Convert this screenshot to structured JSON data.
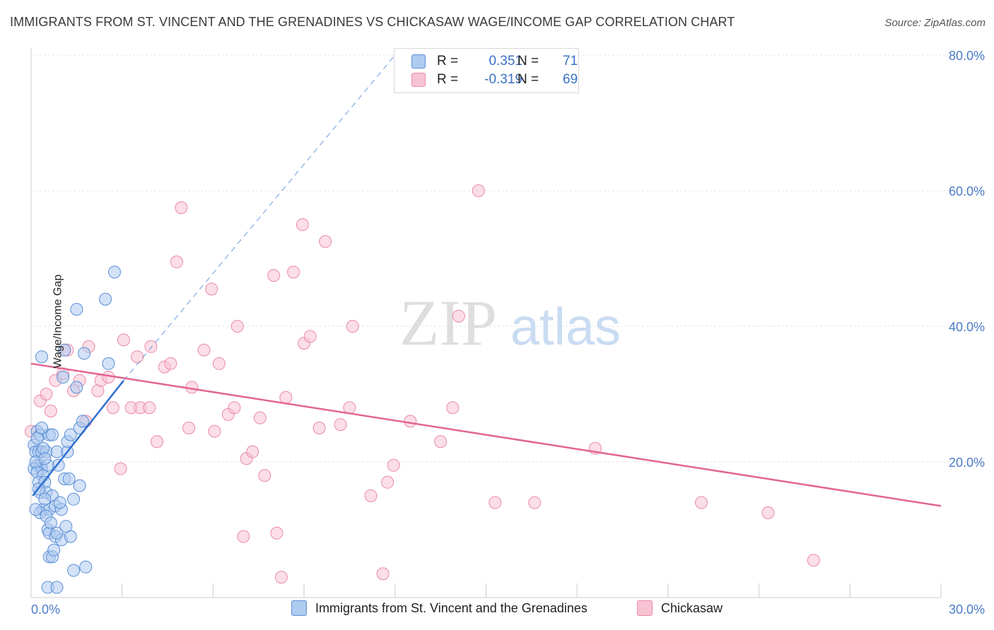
{
  "title": "IMMIGRANTS FROM ST. VINCENT AND THE GRENADINES VS CHICKASAW WAGE/INCOME GAP CORRELATION CHART",
  "source": "Source: ZipAtlas.com",
  "watermark": {
    "zip": "ZIP",
    "atlas": "atlas"
  },
  "legend_top": [
    {
      "r_label": "R =",
      "r_value": "0.351",
      "n_label": "N =",
      "n_value": "71"
    },
    {
      "r_label": "R =",
      "r_value": "-0.319",
      "n_label": "N =",
      "n_value": "69"
    }
  ],
  "colors": {
    "blue_fill": "#aecbf0",
    "blue_stroke": "#5b8fd6",
    "blue_line": "#2f6fd1",
    "pink_fill": "#f7c3d3",
    "pink_stroke": "#e98aa8",
    "pink_line": "#e26592",
    "axis_text": "#4a7cc7"
  },
  "chart_data": {
    "type": "scatter",
    "title": "IMMIGRANTS FROM ST. VINCENT AND THE GRENADINES VS CHICKASAW WAGE/INCOME GAP CORRELATION CHART",
    "xlabel": "",
    "ylabel": "Wage/Income Gap",
    "xlim": [
      0,
      30
    ],
    "ylim": [
      0,
      80
    ],
    "x_ticks": [
      "0.0%",
      "30.0%"
    ],
    "y_ticks": [
      "20.0%",
      "40.0%",
      "60.0%",
      "80.0%"
    ],
    "grid": true,
    "legend_position": "bottom",
    "series": [
      {
        "name": "Immigrants from St. Vincent and the Grenadines",
        "color": "#aecbf0",
        "trend": {
          "x": [
            0.05,
            3.05
          ],
          "y": [
            15.0,
            32.0
          ],
          "extrapolated_to": [
            12.0,
            80.0
          ]
        },
        "points": [
          [
            0.1,
            22.5
          ],
          [
            0.2,
            24.5
          ],
          [
            0.3,
            24.0
          ],
          [
            0.15,
            21.5
          ],
          [
            0.25,
            21.5
          ],
          [
            0.35,
            21.5
          ],
          [
            0.5,
            21.5
          ],
          [
            0.6,
            24.0
          ],
          [
            0.2,
            19.5
          ],
          [
            0.3,
            19.5
          ],
          [
            0.1,
            19.0
          ],
          [
            0.35,
            19.0
          ],
          [
            0.2,
            18.5
          ],
          [
            0.4,
            18.0
          ],
          [
            0.25,
            17.0
          ],
          [
            0.45,
            17.0
          ],
          [
            0.3,
            15.5
          ],
          [
            0.5,
            15.5
          ],
          [
            0.7,
            15.0
          ],
          [
            0.4,
            13.0
          ],
          [
            0.6,
            13.0
          ],
          [
            0.8,
            13.5
          ],
          [
            0.3,
            12.5
          ],
          [
            0.5,
            12.0
          ],
          [
            1.0,
            13.0
          ],
          [
            0.55,
            10.0
          ],
          [
            0.6,
            9.5
          ],
          [
            0.8,
            9.0
          ],
          [
            1.0,
            8.5
          ],
          [
            0.6,
            6.0
          ],
          [
            0.7,
            6.0
          ],
          [
            0.55,
            1.5
          ],
          [
            0.85,
            1.5
          ],
          [
            1.4,
            4.0
          ],
          [
            1.8,
            4.5
          ],
          [
            1.3,
            9.0
          ],
          [
            1.4,
            14.5
          ],
          [
            1.6,
            16.5
          ],
          [
            1.1,
            17.5
          ],
          [
            0.9,
            19.5
          ],
          [
            0.85,
            21.5
          ],
          [
            1.2,
            21.5
          ],
          [
            1.2,
            23.0
          ],
          [
            1.3,
            24.0
          ],
          [
            1.6,
            25.0
          ],
          [
            1.7,
            26.0
          ],
          [
            1.5,
            31.0
          ],
          [
            1.05,
            32.5
          ],
          [
            0.35,
            35.5
          ],
          [
            1.75,
            36.0
          ],
          [
            1.1,
            36.5
          ],
          [
            2.55,
            34.5
          ],
          [
            1.5,
            42.5
          ],
          [
            2.45,
            44.0
          ],
          [
            2.75,
            48.0
          ],
          [
            0.15,
            20.0
          ],
          [
            0.25,
            16.0
          ],
          [
            0.45,
            14.5
          ],
          [
            0.65,
            11.0
          ],
          [
            0.75,
            7.0
          ],
          [
            0.95,
            14.0
          ],
          [
            1.25,
            17.5
          ],
          [
            0.4,
            22.0
          ],
          [
            0.2,
            23.5
          ],
          [
            0.55,
            19.5
          ],
          [
            0.35,
            25.0
          ],
          [
            0.7,
            24.0
          ],
          [
            0.45,
            20.5
          ],
          [
            0.15,
            13.0
          ],
          [
            0.85,
            9.5
          ],
          [
            1.15,
            10.5
          ]
        ]
      },
      {
        "name": "Chickasaw",
        "color": "#f7c3d3",
        "trend": {
          "x": [
            0.0,
            30.0
          ],
          "y": [
            34.5,
            13.5
          ]
        },
        "points": [
          [
            0.0,
            24.5
          ],
          [
            0.3,
            29.0
          ],
          [
            0.5,
            30.0
          ],
          [
            0.65,
            27.5
          ],
          [
            0.8,
            32.0
          ],
          [
            1.05,
            33.0
          ],
          [
            1.2,
            36.5
          ],
          [
            1.4,
            30.5
          ],
          [
            1.6,
            32.0
          ],
          [
            1.8,
            26.0
          ],
          [
            1.9,
            37.0
          ],
          [
            2.2,
            30.5
          ],
          [
            2.3,
            32.0
          ],
          [
            2.55,
            32.5
          ],
          [
            2.7,
            28.0
          ],
          [
            3.05,
            38.0
          ],
          [
            2.95,
            19.0
          ],
          [
            3.3,
            28.0
          ],
          [
            3.5,
            35.5
          ],
          [
            3.6,
            28.0
          ],
          [
            3.9,
            28.0
          ],
          [
            3.95,
            37.0
          ],
          [
            4.15,
            23.0
          ],
          [
            4.4,
            34.0
          ],
          [
            4.6,
            34.5
          ],
          [
            4.8,
            49.5
          ],
          [
            4.95,
            57.5
          ],
          [
            5.2,
            25.0
          ],
          [
            5.3,
            31.0
          ],
          [
            5.7,
            36.5
          ],
          [
            5.95,
            45.5
          ],
          [
            6.05,
            24.5
          ],
          [
            6.2,
            34.5
          ],
          [
            6.5,
            27.0
          ],
          [
            6.7,
            28.0
          ],
          [
            6.8,
            40.0
          ],
          [
            7.0,
            9.0
          ],
          [
            7.1,
            20.5
          ],
          [
            7.3,
            21.5
          ],
          [
            7.55,
            26.5
          ],
          [
            7.7,
            18.0
          ],
          [
            8.0,
            47.5
          ],
          [
            8.1,
            9.5
          ],
          [
            8.25,
            3.0
          ],
          [
            8.4,
            29.5
          ],
          [
            8.65,
            48.0
          ],
          [
            8.95,
            55.0
          ],
          [
            9.0,
            37.5
          ],
          [
            9.2,
            38.5
          ],
          [
            9.5,
            25.0
          ],
          [
            9.7,
            52.5
          ],
          [
            10.2,
            25.5
          ],
          [
            10.6,
            40.0
          ],
          [
            10.5,
            28.0
          ],
          [
            11.2,
            15.0
          ],
          [
            11.6,
            3.5
          ],
          [
            11.75,
            17.0
          ],
          [
            11.95,
            19.5
          ],
          [
            12.5,
            26.0
          ],
          [
            13.5,
            23.0
          ],
          [
            13.9,
            28.0
          ],
          [
            14.1,
            41.5
          ],
          [
            14.75,
            60.0
          ],
          [
            15.3,
            14.0
          ],
          [
            16.6,
            14.0
          ],
          [
            18.6,
            22.0
          ],
          [
            22.1,
            14.0
          ],
          [
            24.3,
            12.5
          ],
          [
            25.8,
            5.5
          ]
        ]
      }
    ]
  },
  "bottom_legend": [
    {
      "label": "Immigrants from St. Vincent and the Grenadines"
    },
    {
      "label": "Chickasaw"
    }
  ]
}
